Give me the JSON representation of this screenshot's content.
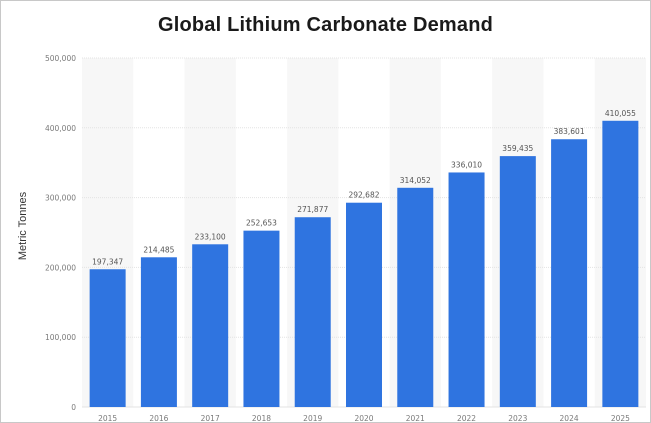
{
  "chart_data": {
    "type": "bar",
    "title": "Global Lithium Carbonate Demand",
    "xlabel": "",
    "ylabel": "Metric Tonnes",
    "categories": [
      "2015",
      "2016",
      "2017",
      "2018",
      "2019",
      "2020",
      "2021",
      "2022",
      "2023",
      "2024",
      "2025"
    ],
    "values": [
      197347,
      214485,
      233100,
      252653,
      271877,
      292682,
      314052,
      336010,
      359435,
      383601,
      410055
    ],
    "value_labels": [
      "197,347",
      "214,485",
      "233,100",
      "252,653",
      "271,877",
      "292,682",
      "314,052",
      "336,010",
      "359,435",
      "383,601",
      "410,055"
    ],
    "ylim": [
      0,
      500000
    ],
    "yticks": [
      0,
      100000,
      200000,
      300000,
      400000,
      500000
    ],
    "ytick_labels": [
      "0",
      "100,000",
      "200,000",
      "300,000",
      "400,000",
      "500,000"
    ],
    "grid": true,
    "legend": "none",
    "bar_color": "#2f74e0"
  }
}
